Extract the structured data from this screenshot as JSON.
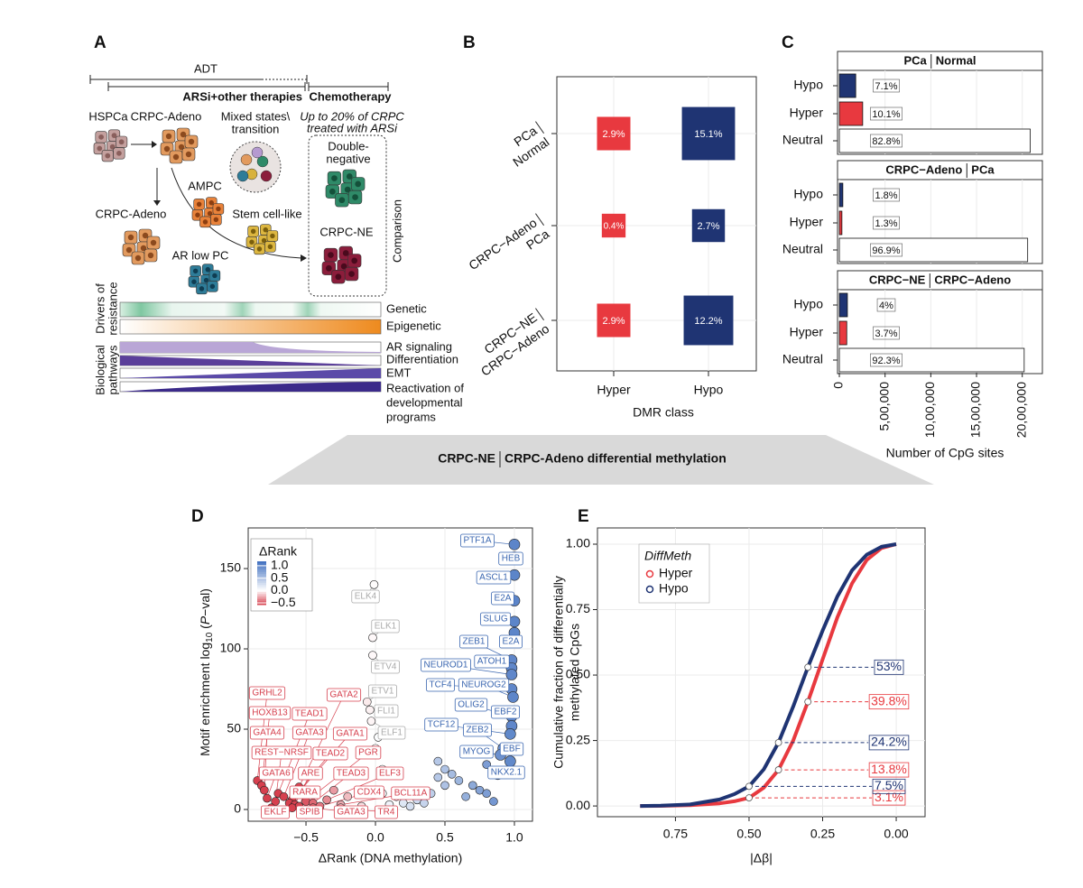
{
  "figure": {
    "panel_a": {
      "letter": "A",
      "timeline": {
        "adt": "ADT",
        "arsi": "ARSi+other therapies",
        "chemo": "Chemotherapy"
      },
      "stages": {
        "hspca": "HSPCa",
        "crpc_adeno": "CRPC-Adeno",
        "mixed": [
          "Mixed states\\",
          "transition"
        ],
        "note": [
          "Up to 20% of CRPC",
          "treated with ARSi"
        ],
        "double_negative": [
          "Double-",
          "negative"
        ],
        "ampc": "AMPC",
        "crpc_adeno_2": "CRPC-Adeno",
        "stem": "Stem cell-like",
        "crpc_ne": "CRPC-NE",
        "ar_low": "AR low PC",
        "comparison": "Comparison"
      },
      "tracks": {
        "drivers": [
          "Drivers of",
          "resistance"
        ],
        "pathways": [
          "Biological",
          "pathways"
        ],
        "genetic": "Genetic",
        "epigenetic": "Epigenetic",
        "ar": "AR signaling",
        "differentiation": "Differentiation",
        "emt": "EMT",
        "reactivation": [
          "Reactivation of",
          "developmental",
          "programs"
        ]
      }
    },
    "banner": {
      "left": "CRPC-NE",
      "right": "CRPC-Adeno differential methylation"
    }
  },
  "chart_data": [
    {
      "type": "tile",
      "letter": "B",
      "categories": [
        "Hyper",
        "Hypo"
      ],
      "rows": [
        [
          "PCa",
          "Normal"
        ],
        [
          "CRPC−Adeno",
          "PCa"
        ],
        [
          "CRPC−NE",
          "CRPC−Adeno"
        ]
      ],
      "values": [
        [
          2.9,
          15.1
        ],
        [
          0.4,
          2.7
        ],
        [
          2.9,
          12.2
        ]
      ],
      "value_labels": [
        [
          "2.9%",
          "15.1%"
        ],
        [
          "0.4%",
          "2.7%"
        ],
        [
          "2.9%",
          "12.2%"
        ]
      ],
      "colors": [
        "#e8393f",
        "#1f3473"
      ],
      "x_label": "DMR class"
    },
    {
      "type": "bar",
      "orientation": "horizontal",
      "letter": "C",
      "categories": [
        "Hypo",
        "Hyper",
        "Neutral"
      ],
      "colors": [
        "#1f3473",
        "#e8393f",
        "#ffffff"
      ],
      "facets": [
        {
          "title": [
            "PCa",
            "Normal"
          ],
          "values": [
            179000,
            255000,
            2087000
          ],
          "shares": [
            7.1,
            10.1,
            82.8
          ],
          "share_labels": [
            "7.1%",
            "10.1%",
            "82.8%"
          ]
        },
        {
          "title": [
            "CRPC−Adeno",
            "PCa"
          ],
          "values": [
            38000,
            28000,
            2059000
          ],
          "shares": [
            1.8,
            1.3,
            96.9
          ],
          "share_labels": [
            "1.8%",
            "1.3%",
            "96.9%"
          ]
        },
        {
          "title": [
            "CRPC−NE",
            "CRPC−Adeno"
          ],
          "values": [
            88000,
            81000,
            2021000
          ],
          "shares": [
            4,
            3.7,
            92.3
          ],
          "share_labels": [
            "4%",
            "3.7%",
            "92.3%"
          ]
        }
      ],
      "xlim": [
        -20000,
        2220000
      ],
      "xticks": [
        0,
        {
          "value": 500000,
          "label": "5,00,000"
        },
        {
          "value": 1000000,
          "label": "10,00,000"
        },
        {
          "value": 1500000,
          "label": "15,00,000"
        },
        {
          "value": 2000000,
          "label": "20,00,000"
        }
      ],
      "x_label": "Number of CpG sites",
      "grid": true
    },
    {
      "type": "scatter",
      "letter": "D",
      "x": [
        1.0,
        1.0,
        1.0,
        1.0,
        1.0,
        1.0,
        0.98,
        0.98,
        0.98,
        0.98,
        0.99,
        0.98,
        0.98,
        0.97,
        0.92,
        0.9,
        0.97,
        0.88,
        -0.01,
        -0.02,
        -0.02,
        -0.06,
        -0.04,
        -0.03,
        -0.85,
        -0.82,
        -0.8,
        -0.72,
        -0.78,
        -0.7,
        -0.66,
        -0.55,
        -0.6,
        -0.62,
        -0.5,
        -0.58,
        -0.45,
        -0.35,
        -0.55,
        -0.4,
        -0.25,
        -0.75,
        -0.6,
        -0.45,
        -0.25,
        0.02,
        0.0,
        0.45,
        0.5,
        0.55,
        0.6,
        0.7,
        0.75,
        0.8,
        0.65,
        0.3,
        0.2,
        0.1,
        -0.1,
        0.4,
        0.85,
        0.15,
        -0.2,
        0.5,
        0.35,
        0.05,
        0.25,
        0.8,
        0.45,
        -0.3,
        0.05
      ],
      "values": [
        165,
        157,
        146,
        130,
        117,
        110,
        93,
        88,
        84,
        75,
        70,
        58,
        52,
        47,
        38,
        34,
        30,
        22,
        140,
        107,
        96,
        67,
        62,
        55,
        18,
        15,
        12,
        5,
        7,
        10,
        8,
        14,
        6,
        4,
        5,
        3,
        4,
        6,
        2,
        2,
        3,
        1,
        1,
        1,
        1,
        45,
        38,
        30,
        25,
        22,
        18,
        15,
        12,
        10,
        8,
        6,
        4,
        3,
        2,
        10,
        5,
        8,
        8,
        15,
        4,
        10,
        2,
        28,
        20,
        12,
        25
      ],
      "labels": [
        "PTF1A",
        "HEB",
        "ASCL1",
        "E2A",
        "SLUG",
        "E2A",
        "ZEB1",
        "ATOH1",
        "NEUROD1",
        "TCF4",
        "NEUROG2",
        "OLIG2",
        "EBF2",
        "TCF12",
        "ZEB2",
        "MYOG",
        "EBF",
        "NKX2.1",
        "ELK4",
        "ELK1",
        "ETV4",
        "ETV1",
        "FLI1",
        "ELF1",
        "GRHL2",
        "HOXB13",
        "GATA4",
        "REST−NRSF",
        "GATA6",
        "TEAD1",
        "GATA3",
        "GATA2",
        "GATA1",
        "TEAD2",
        "PGR",
        "ARE",
        "TEAD3",
        "ELF3",
        "RARA",
        "CDX4",
        "BCL11A",
        "EKLF",
        "SPIB",
        "GATA3",
        "TR4",
        null,
        null,
        null,
        null,
        null,
        null,
        null,
        null,
        null,
        null,
        null,
        null,
        null,
        null,
        null,
        null,
        null,
        null,
        null,
        null,
        null,
        null,
        null,
        null,
        null,
        null
      ],
      "xlim": [
        -0.916,
        1.13
      ],
      "ylim": [
        -7.3,
        175.3
      ],
      "xticks": [
        {
          "value": -0.5,
          "label": "−0.5"
        },
        {
          "value": 0,
          "label": "0.0"
        },
        0.5,
        {
          "value": 1,
          "label": "1.0"
        }
      ],
      "yticks": [
        0,
        50,
        100,
        150
      ],
      "x_label": "ΔRank (DNA methylation)",
      "y_label": {
        "text": "Motif enrichment log",
        "sub": "10",
        "open": " (",
        "italic": "P",
        "close": "−val)"
      },
      "legend": {
        "title": "ΔRank",
        "lim": [
          -0.57,
          1.18
        ],
        "colors": [
          "#d6404e",
          "#ffffff",
          "#3f6fbf"
        ],
        "ticks": [
          {
            "value": 1,
            "label": "1.0"
          },
          0.5,
          {
            "value": 0,
            "label": "0.0"
          },
          {
            "value": -0.5,
            "label": "−0.5"
          }
        ]
      },
      "grid": true
    },
    {
      "type": "line",
      "letter": "E",
      "x": [
        0.87,
        0.8,
        0.7,
        0.6,
        0.55,
        0.5,
        0.45,
        0.4,
        0.35,
        0.3,
        0.25,
        0.2,
        0.15,
        0.1,
        0.05,
        0.0
      ],
      "series": [
        {
          "name": "Hyper",
          "color": "#e8393f",
          "values": [
            0,
            0.0005,
            0.003,
            0.01,
            0.018,
            0.031,
            0.07,
            0.138,
            0.25,
            0.398,
            0.56,
            0.72,
            0.85,
            0.94,
            0.985,
            1.0
          ]
        },
        {
          "name": "Hypo",
          "color": "#1f3473",
          "values": [
            0,
            0.001,
            0.006,
            0.025,
            0.045,
            0.075,
            0.14,
            0.242,
            0.38,
            0.53,
            0.67,
            0.8,
            0.9,
            0.96,
            0.99,
            1.0
          ]
        }
      ],
      "markers": [
        {
          "x": [
            0.5,
            0.4,
            0.3
          ],
          "values": [
            0.031,
            0.138,
            0.398
          ],
          "value_labels": [
            "3.1%",
            "13.8%",
            "39.8%"
          ]
        },
        {
          "x": [
            0.5,
            0.4,
            0.3
          ],
          "values": [
            0.075,
            0.242,
            0.53
          ],
          "value_labels": [
            "7.5%",
            "24.2%",
            "53%"
          ]
        }
      ],
      "xlim": [
        1.015,
        -0.098
      ],
      "ylim": [
        -0.041,
        1.062
      ],
      "xticks": [
        {
          "value": 0.75,
          "label": "0.75"
        },
        {
          "value": 0.5,
          "label": "0.50"
        },
        {
          "value": 0.25,
          "label": "0.25"
        },
        {
          "value": 0,
          "label": "0.00"
        }
      ],
      "yticks": [
        {
          "value": 0,
          "label": "0.00"
        },
        {
          "value": 0.25,
          "label": "0.25"
        },
        {
          "value": 0.5,
          "label": "0.50"
        },
        {
          "value": 0.75,
          "label": "0.75"
        },
        {
          "value": 1,
          "label": "1.00"
        }
      ],
      "x_label": "|Δβ|",
      "y_label": [
        "Cumulative fraction of differentially",
        "methylated CpGs"
      ],
      "legend_title": "DiffMeth",
      "legend": "top-left",
      "grid": true
    }
  ]
}
